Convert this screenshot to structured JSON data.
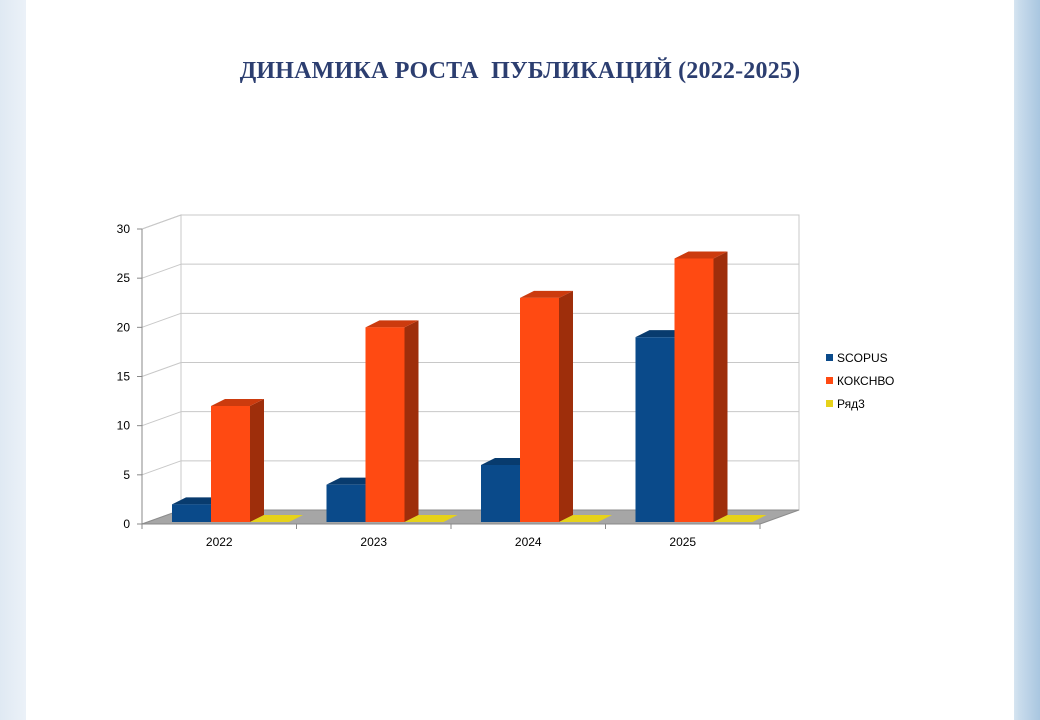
{
  "title": "ДИНАМИКА РОСТА  ПУБЛИКАЦИЙ (2022-2025)",
  "colors": {
    "scopus": "#0a4a8a",
    "kokshvo": "#ff4a12",
    "ryad3": "#e6d21a"
  },
  "chart_data": {
    "type": "bar",
    "title": "ДИНАМИКА РОСТА  ПУБЛИКАЦИЙ (2022-2025)",
    "categories": [
      "2022",
      "2023",
      "2024",
      "2025"
    ],
    "series": [
      {
        "name": "SCOPUS",
        "values": [
          2,
          4,
          6,
          19
        ]
      },
      {
        "name": "КОКСНВО",
        "values": [
          12,
          20,
          23,
          27
        ]
      },
      {
        "name": "Ряд3",
        "values": [
          0,
          0,
          0,
          0
        ]
      }
    ],
    "ylim": [
      0,
      30
    ],
    "yticks": [
      "0",
      "5",
      "10",
      "15",
      "20",
      "25",
      "30"
    ],
    "grid": true,
    "legend": "right",
    "style": "3d-clustered-column"
  }
}
